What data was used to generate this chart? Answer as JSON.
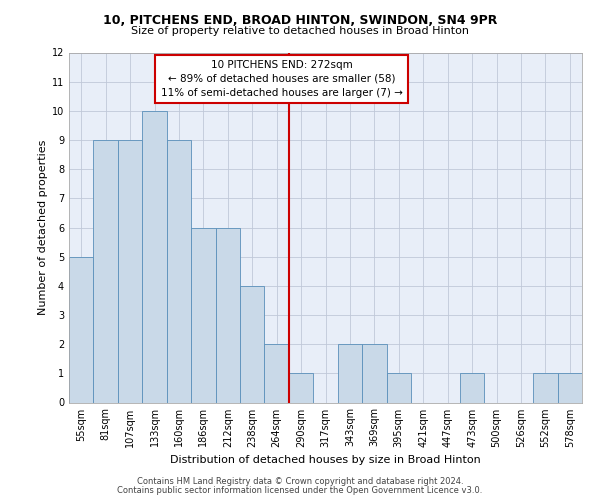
{
  "title_line1": "10, PITCHENS END, BROAD HINTON, SWINDON, SN4 9PR",
  "title_line2": "Size of property relative to detached houses in Broad Hinton",
  "xlabel": "Distribution of detached houses by size in Broad Hinton",
  "ylabel": "Number of detached properties",
  "bin_labels": [
    "55sqm",
    "81sqm",
    "107sqm",
    "133sqm",
    "160sqm",
    "186sqm",
    "212sqm",
    "238sqm",
    "264sqm",
    "290sqm",
    "317sqm",
    "343sqm",
    "369sqm",
    "395sqm",
    "421sqm",
    "447sqm",
    "473sqm",
    "500sqm",
    "526sqm",
    "552sqm",
    "578sqm"
  ],
  "bar_values": [
    5,
    9,
    9,
    10,
    9,
    6,
    6,
    4,
    2,
    1,
    0,
    2,
    2,
    1,
    0,
    0,
    1,
    0,
    0,
    1,
    1
  ],
  "bar_color": "#c9d9e8",
  "bar_edgecolor": "#5a8fba",
  "vline_x": 8.5,
  "vline_color": "#cc0000",
  "annotation_text": "10 PITCHENS END: 272sqm\n← 89% of detached houses are smaller (58)\n11% of semi-detached houses are larger (7) →",
  "annotation_box_color": "#cc0000",
  "ylim": [
    0,
    12
  ],
  "yticks": [
    0,
    1,
    2,
    3,
    4,
    5,
    6,
    7,
    8,
    9,
    10,
    11,
    12
  ],
  "footer_line1": "Contains HM Land Registry data © Crown copyright and database right 2024.",
  "footer_line2": "Contains public sector information licensed under the Open Government Licence v3.0.",
  "background_color": "#e8eef8",
  "grid_color": "#c0c8d8",
  "title1_fontsize": 9,
  "title2_fontsize": 8,
  "ylabel_fontsize": 8,
  "xlabel_fontsize": 8,
  "tick_fontsize": 7,
  "footer_fontsize": 6,
  "annot_fontsize": 7.5
}
